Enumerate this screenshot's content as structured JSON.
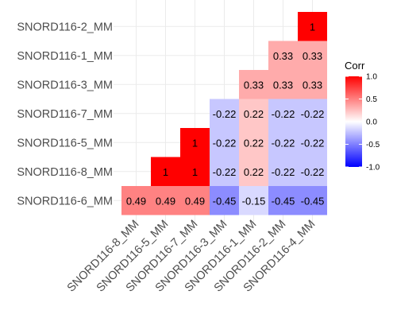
{
  "chart_data": {
    "type": "heatmap",
    "x_labels": [
      "SNORD116-8_MM",
      "SNORD116-5_MM",
      "SNORD116-7_MM",
      "SNORD116-3_MM",
      "SNORD116-1_MM",
      "SNORD116-2_MM",
      "SNORD116-4_MM"
    ],
    "y_labels": [
      "SNORD116-6_MM",
      "SNORD116-8_MM",
      "SNORD116-5_MM",
      "SNORD116-7_MM",
      "SNORD116-3_MM",
      "SNORD116-1_MM",
      "SNORD116-2_MM"
    ],
    "cells": [
      {
        "x": "SNORD116-8_MM",
        "y": "SNORD116-6_MM",
        "value": 0.49,
        "label": "0.49"
      },
      {
        "x": "SNORD116-5_MM",
        "y": "SNORD116-6_MM",
        "value": 0.49,
        "label": "0.49"
      },
      {
        "x": "SNORD116-7_MM",
        "y": "SNORD116-6_MM",
        "value": 0.49,
        "label": "0.49"
      },
      {
        "x": "SNORD116-3_MM",
        "y": "SNORD116-6_MM",
        "value": -0.45,
        "label": "-0.45"
      },
      {
        "x": "SNORD116-1_MM",
        "y": "SNORD116-6_MM",
        "value": -0.15,
        "label": "-0.15"
      },
      {
        "x": "SNORD116-2_MM",
        "y": "SNORD116-6_MM",
        "value": -0.45,
        "label": "-0.45"
      },
      {
        "x": "SNORD116-4_MM",
        "y": "SNORD116-6_MM",
        "value": -0.45,
        "label": "-0.45"
      },
      {
        "x": "SNORD116-5_MM",
        "y": "SNORD116-8_MM",
        "value": 1,
        "label": "1"
      },
      {
        "x": "SNORD116-7_MM",
        "y": "SNORD116-8_MM",
        "value": 1,
        "label": "1"
      },
      {
        "x": "SNORD116-3_MM",
        "y": "SNORD116-8_MM",
        "value": -0.22,
        "label": "-0.22"
      },
      {
        "x": "SNORD116-1_MM",
        "y": "SNORD116-8_MM",
        "value": 0.22,
        "label": "0.22"
      },
      {
        "x": "SNORD116-2_MM",
        "y": "SNORD116-8_MM",
        "value": -0.22,
        "label": "-0.22"
      },
      {
        "x": "SNORD116-4_MM",
        "y": "SNORD116-8_MM",
        "value": -0.22,
        "label": "-0.22"
      },
      {
        "x": "SNORD116-7_MM",
        "y": "SNORD116-5_MM",
        "value": 1,
        "label": "1"
      },
      {
        "x": "SNORD116-3_MM",
        "y": "SNORD116-5_MM",
        "value": -0.22,
        "label": "-0.22"
      },
      {
        "x": "SNORD116-1_MM",
        "y": "SNORD116-5_MM",
        "value": 0.22,
        "label": "0.22"
      },
      {
        "x": "SNORD116-2_MM",
        "y": "SNORD116-5_MM",
        "value": -0.22,
        "label": "-0.22"
      },
      {
        "x": "SNORD116-4_MM",
        "y": "SNORD116-5_MM",
        "value": -0.22,
        "label": "-0.22"
      },
      {
        "x": "SNORD116-3_MM",
        "y": "SNORD116-7_MM",
        "value": -0.22,
        "label": "-0.22"
      },
      {
        "x": "SNORD116-1_MM",
        "y": "SNORD116-7_MM",
        "value": 0.22,
        "label": "0.22"
      },
      {
        "x": "SNORD116-2_MM",
        "y": "SNORD116-7_MM",
        "value": -0.22,
        "label": "-0.22"
      },
      {
        "x": "SNORD116-4_MM",
        "y": "SNORD116-7_MM",
        "value": -0.22,
        "label": "-0.22"
      },
      {
        "x": "SNORD116-1_MM",
        "y": "SNORD116-3_MM",
        "value": 0.33,
        "label": "0.33"
      },
      {
        "x": "SNORD116-2_MM",
        "y": "SNORD116-3_MM",
        "value": 0.33,
        "label": "0.33"
      },
      {
        "x": "SNORD116-4_MM",
        "y": "SNORD116-3_MM",
        "value": 0.33,
        "label": "0.33"
      },
      {
        "x": "SNORD116-2_MM",
        "y": "SNORD116-1_MM",
        "value": 0.33,
        "label": "0.33"
      },
      {
        "x": "SNORD116-4_MM",
        "y": "SNORD116-1_MM",
        "value": 0.33,
        "label": "0.33"
      },
      {
        "x": "SNORD116-4_MM",
        "y": "SNORD116-2_MM",
        "value": 1,
        "label": "1"
      }
    ],
    "color_scale": {
      "low": "#0000ff",
      "mid": "#ffffff",
      "high": "#ff0000",
      "limits": [
        -1,
        1
      ]
    },
    "legend": {
      "title": "Corr",
      "ticks": [
        1.0,
        0.5,
        0.0,
        -0.5,
        -1.0
      ],
      "tick_labels": [
        "1.0",
        "0.5",
        "0.0",
        "-0.5",
        "-1.0"
      ],
      "position": "right"
    },
    "grid": true
  }
}
